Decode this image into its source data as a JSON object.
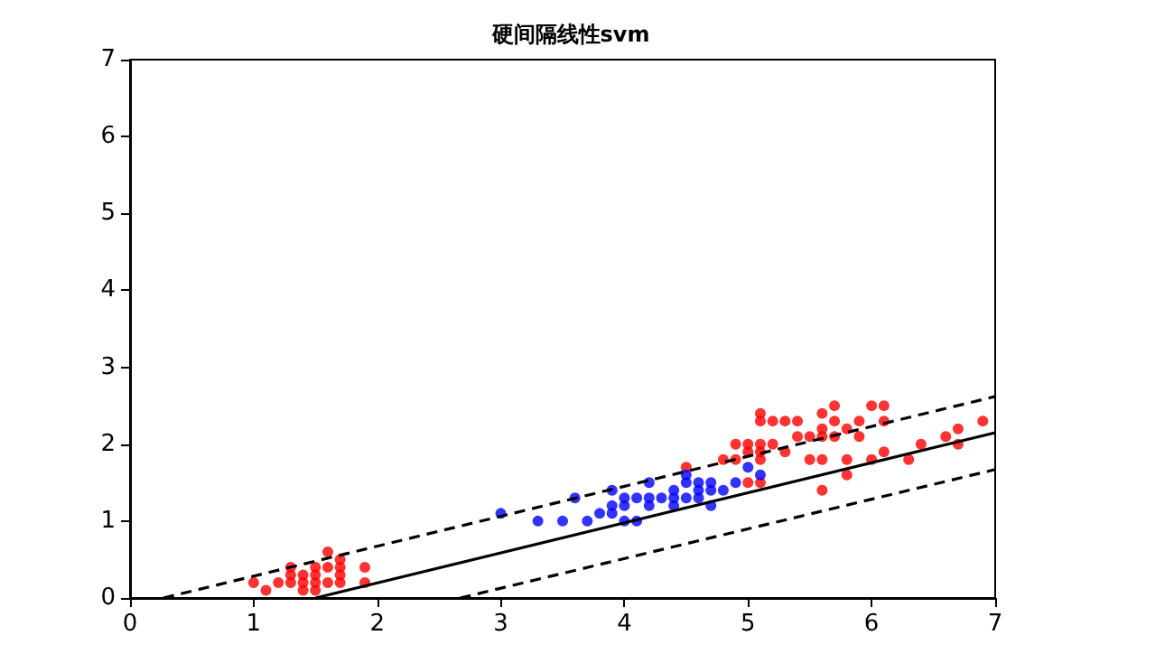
{
  "chart_data": {
    "type": "scatter",
    "title": "硬间隔线性svm",
    "xlim": [
      0,
      7
    ],
    "ylim": [
      0,
      7
    ],
    "xticks": [
      0,
      1,
      2,
      3,
      4,
      5,
      6,
      7
    ],
    "yticks": [
      0,
      1,
      2,
      3,
      4,
      5,
      6,
      7
    ],
    "grid": false,
    "marker": "circle",
    "series": [
      {
        "color": "#ff0000",
        "x": [
          1.0,
          1.1,
          1.2,
          1.3,
          1.3,
          1.3,
          1.4,
          1.4,
          1.4,
          1.5,
          1.5,
          1.5,
          1.5,
          1.6,
          1.6,
          1.6,
          1.7,
          1.7,
          1.7,
          1.7,
          1.9,
          1.9,
          4.5,
          4.8,
          4.9,
          4.9,
          5.0,
          5.0,
          5.0,
          5.1,
          5.1,
          5.1,
          5.1,
          5.1,
          5.1,
          5.2,
          5.2,
          5.3,
          5.3,
          5.4,
          5.4,
          5.5,
          5.5,
          5.6,
          5.6,
          5.6,
          5.6,
          5.6,
          5.7,
          5.7,
          5.7,
          5.8,
          5.8,
          5.8,
          5.9,
          5.9,
          6.0,
          6.0,
          6.1,
          6.1,
          6.1,
          6.3,
          6.4,
          6.6,
          6.7,
          6.7,
          6.9
        ],
        "values": [
          0.2,
          0.1,
          0.2,
          0.2,
          0.3,
          0.4,
          0.1,
          0.2,
          0.3,
          0.1,
          0.2,
          0.3,
          0.4,
          0.2,
          0.4,
          0.6,
          0.2,
          0.3,
          0.4,
          0.5,
          0.2,
          0.4,
          1.7,
          1.8,
          1.8,
          2.0,
          1.5,
          1.9,
          2.0,
          1.5,
          1.8,
          1.9,
          2.0,
          2.3,
          2.4,
          2.0,
          2.3,
          1.9,
          2.3,
          2.1,
          2.3,
          1.8,
          2.1,
          1.4,
          1.8,
          2.1,
          2.2,
          2.4,
          2.1,
          2.3,
          2.5,
          1.6,
          1.8,
          2.2,
          2.1,
          2.3,
          1.8,
          2.5,
          1.9,
          2.3,
          2.5,
          1.8,
          2.0,
          2.1,
          2.0,
          2.2,
          2.3
        ]
      },
      {
        "color": "#0000ff",
        "x": [
          3.0,
          3.3,
          3.5,
          3.6,
          3.7,
          3.8,
          3.9,
          3.9,
          3.9,
          4.0,
          4.0,
          4.0,
          4.1,
          4.1,
          4.2,
          4.2,
          4.2,
          4.3,
          4.4,
          4.4,
          4.4,
          4.5,
          4.5,
          4.5,
          4.6,
          4.6,
          4.6,
          4.7,
          4.7,
          4.7,
          4.8,
          4.9,
          5.0,
          5.1
        ],
        "values": [
          1.1,
          1.0,
          1.0,
          1.3,
          1.0,
          1.1,
          1.1,
          1.2,
          1.4,
          1.0,
          1.2,
          1.3,
          1.0,
          1.3,
          1.2,
          1.3,
          1.5,
          1.3,
          1.2,
          1.3,
          1.4,
          1.3,
          1.5,
          1.6,
          1.3,
          1.4,
          1.5,
          1.2,
          1.4,
          1.5,
          1.4,
          1.5,
          1.7,
          1.6
        ]
      },
      {
        "type": "line",
        "color": "#000000",
        "line_style": "solid",
        "marker": "none",
        "x": [
          1.5,
          7
        ],
        "values": [
          0,
          2.15
        ]
      },
      {
        "type": "line",
        "color": "#000000",
        "line_style": "dashed",
        "marker": "none",
        "x": [
          0.27,
          7
        ],
        "values": [
          0,
          2.62
        ]
      },
      {
        "type": "line",
        "color": "#000000",
        "line_style": "dashed",
        "marker": "none",
        "x": [
          2.67,
          7
        ],
        "values": [
          0,
          1.67
        ]
      }
    ]
  }
}
